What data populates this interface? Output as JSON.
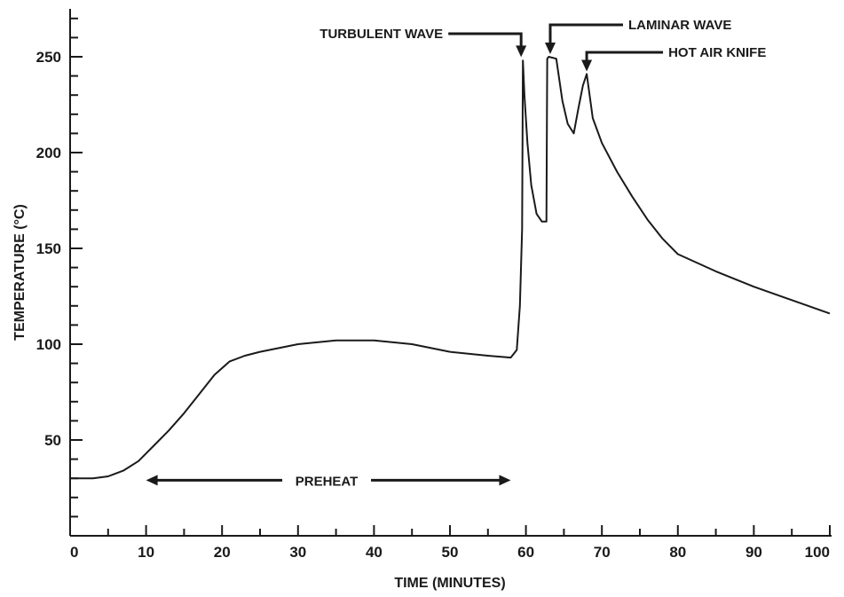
{
  "chart_data": {
    "type": "line",
    "xlabel": "TIME (MINUTES)",
    "ylabel": "TEMPERATURE (°C)",
    "xlim": [
      0,
      100
    ],
    "ylim": [
      0,
      275
    ],
    "x_ticks": [
      0,
      10,
      20,
      30,
      40,
      50,
      60,
      70,
      80,
      90,
      100
    ],
    "y_ticks": [
      50,
      100,
      150,
      200,
      250
    ],
    "grid": false,
    "series": [
      {
        "x": [
          0,
          3,
          5,
          7,
          9,
          11,
          13,
          15,
          17,
          19,
          21,
          23,
          25,
          30,
          35,
          40,
          45,
          50,
          55,
          58,
          58.8,
          59.2,
          59.5,
          59.6,
          59.8,
          60.2,
          60.7,
          61.4,
          62.1,
          62.7,
          62.8,
          63,
          64,
          64.8,
          65.5,
          66.3,
          66.9,
          67.5,
          68,
          68.8,
          70,
          72,
          74,
          76,
          78,
          80,
          85,
          90,
          95,
          100
        ],
        "y": [
          30,
          30,
          31,
          34,
          39,
          47,
          55,
          64,
          74,
          84,
          91,
          94,
          96,
          100,
          102,
          102,
          100,
          96,
          94,
          93,
          97,
          120,
          160,
          248,
          230,
          205,
          183,
          168,
          164,
          164,
          249,
          250,
          249,
          227,
          215,
          210,
          223,
          235,
          241,
          218,
          205,
          190,
          177,
          165,
          155,
          147,
          138,
          130,
          123,
          116
        ]
      }
    ],
    "annotations": [
      {
        "text": "TURBULENT WAVE",
        "x": 59.6,
        "y": 248
      },
      {
        "text": "LAMINAR WAVE",
        "x": 63.2,
        "y": 250
      },
      {
        "text": "HOT AIR KNIFE",
        "x": 68,
        "y": 241
      },
      {
        "text": "PREHEAT",
        "x_range": [
          10,
          58
        ],
        "y": 29
      }
    ]
  }
}
